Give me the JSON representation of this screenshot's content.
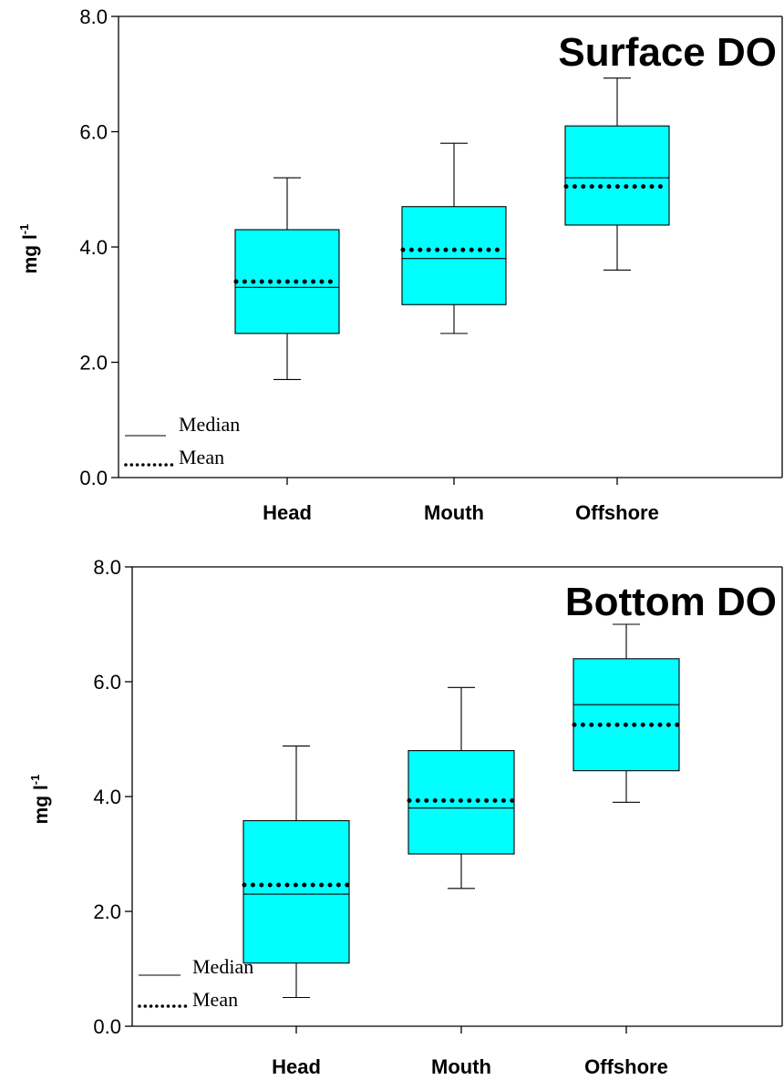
{
  "colors": {
    "box_fill": "#00ffff",
    "stroke": "#000000",
    "background": "#ffffff"
  },
  "legend": {
    "median_label": "Median",
    "mean_label": "Mean"
  },
  "chart_data": [
    {
      "type": "box",
      "title": "Surface DO",
      "ylabel": "mg l",
      "ylabel_superscript": "-1",
      "ylim": [
        0,
        8
      ],
      "yticks": [
        "0.0",
        "2.0",
        "4.0",
        "6.0",
        "8.0"
      ],
      "categories": [
        "Head",
        "Mouth",
        "Offshore"
      ],
      "boxes": [
        {
          "category": "Head",
          "whisker_low": 1.7,
          "q1": 2.5,
          "median": 3.3,
          "q3": 4.3,
          "whisker_high": 5.2,
          "mean": 3.4
        },
        {
          "category": "Mouth",
          "whisker_low": 2.5,
          "q1": 3.0,
          "median": 3.8,
          "q3": 4.7,
          "whisker_high": 5.8,
          "mean": 3.95
        },
        {
          "category": "Offshore",
          "whisker_low": 3.6,
          "q1": 4.38,
          "median": 5.2,
          "q3": 6.1,
          "whisker_high": 6.93,
          "mean": 5.05
        }
      ],
      "legend_entries": [
        "Median",
        "Mean"
      ]
    },
    {
      "type": "box",
      "title": "Bottom DO",
      "ylabel": "mg l",
      "ylabel_superscript": "-1",
      "ylim": [
        0,
        8
      ],
      "yticks": [
        "0.0",
        "2.0",
        "4.0",
        "6.0",
        "8.0"
      ],
      "categories": [
        "Head",
        "Mouth",
        "Offshore"
      ],
      "boxes": [
        {
          "category": "Head",
          "whisker_low": 0.5,
          "q1": 1.1,
          "median": 2.3,
          "q3": 3.58,
          "whisker_high": 4.88,
          "mean": 2.46
        },
        {
          "category": "Mouth",
          "whisker_low": 2.4,
          "q1": 3.0,
          "median": 3.8,
          "q3": 4.8,
          "whisker_high": 5.9,
          "mean": 3.93
        },
        {
          "category": "Offshore",
          "whisker_low": 3.9,
          "q1": 4.45,
          "median": 5.6,
          "q3": 6.4,
          "whisker_high": 7.0,
          "mean": 5.25
        }
      ],
      "legend_entries": [
        "Median",
        "Mean"
      ]
    }
  ]
}
